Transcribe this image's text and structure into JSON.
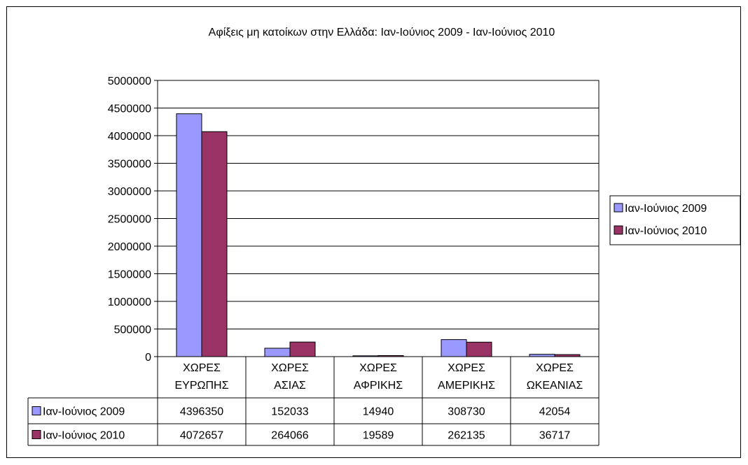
{
  "chart_data": {
    "type": "bar",
    "title": "Αφίξεις μη κατοίκων στην Ελλάδα: Ιαν-Ιούνιος 2009 - Ιαν-Ιούνιος 2010",
    "categories": [
      [
        "ΧΩΡΕΣ",
        "ΕΥΡΩΠΗΣ"
      ],
      [
        "ΧΩΡΕΣ",
        "ΑΣΙΑΣ"
      ],
      [
        "ΧΩΡΕΣ",
        "ΑΦΡΙΚΗΣ"
      ],
      [
        "ΧΩΡΕΣ",
        "ΑΜΕΡΙΚΗΣ"
      ],
      [
        "ΧΩΡΕΣ",
        "ΩΚΕΑΝΙΑΣ"
      ]
    ],
    "series": [
      {
        "name": "Ιαν-Ιούνιος 2009",
        "color": "#9999ff",
        "values": [
          4396350,
          152033,
          14940,
          308730,
          42054
        ]
      },
      {
        "name": "Ιαν-Ιούνιος 2010",
        "color": "#993366",
        "values": [
          4072657,
          264066,
          19589,
          262135,
          36717
        ]
      }
    ],
    "ylim": [
      0,
      5000000
    ],
    "yticks": [
      0,
      500000,
      1000000,
      1500000,
      2000000,
      2500000,
      3000000,
      3500000,
      4000000,
      4500000,
      5000000
    ],
    "grid": true,
    "legend": "right",
    "data_table": true
  }
}
